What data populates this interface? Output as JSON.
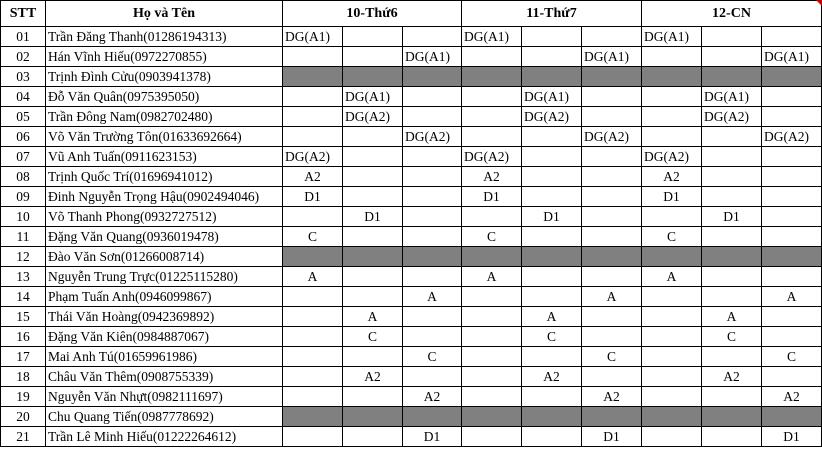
{
  "header": {
    "stt": "STT",
    "name": "Họ và Tên",
    "days": [
      "10-Thứ6",
      "11-Thứ7",
      "12-CN"
    ]
  },
  "rows": [
    {
      "stt": "01",
      "name": "Trần Đăng Thanh(01286194313)",
      "gray": false,
      "cells": [
        "DG(A1)",
        "",
        "",
        "DG(A1)",
        "",
        "",
        "DG(A1)",
        "",
        ""
      ]
    },
    {
      "stt": "02",
      "name": "Hán Vĩnh Hiếu(0972270855)",
      "gray": false,
      "cells": [
        "",
        "",
        "DG(A1)",
        "",
        "",
        "DG(A1)",
        "",
        "",
        "DG(A1)"
      ]
    },
    {
      "stt": "03",
      "name": "Trịnh Đình Cửu(0903941378)",
      "gray": true,
      "cells": [
        "",
        "",
        "",
        "",
        "",
        "",
        "",
        "",
        ""
      ]
    },
    {
      "stt": "04",
      "name": "Đỗ Văn Quân(0975395050)",
      "gray": false,
      "cells": [
        "",
        "DG(A1)",
        "",
        "",
        "DG(A1)",
        "",
        "",
        "DG(A1)",
        ""
      ]
    },
    {
      "stt": "05",
      "name": "Trần Đông Nam(0982702480)",
      "gray": false,
      "cells": [
        "",
        "DG(A2)",
        "",
        "",
        "DG(A2)",
        "",
        "",
        "DG(A2)",
        ""
      ]
    },
    {
      "stt": "06",
      "name": "Võ Văn Trường Tôn(01633692664)",
      "gray": false,
      "cells": [
        "",
        "",
        "DG(A2)",
        "",
        "",
        "DG(A2)",
        "",
        "",
        "DG(A2)"
      ]
    },
    {
      "stt": "07",
      "name": "Vũ Anh Tuấn(0911623153)",
      "gray": false,
      "cells": [
        "DG(A2)",
        "",
        "",
        "DG(A2)",
        "",
        "",
        "DG(A2)",
        "",
        ""
      ]
    },
    {
      "stt": "08",
      "name": "Trịnh Quốc Trí(01696941012)",
      "gray": false,
      "cells": [
        "A2",
        "",
        "",
        "A2",
        "",
        "",
        "A2",
        "",
        ""
      ]
    },
    {
      "stt": "09",
      "name": "Đinh Nguyễn Trọng Hậu(0902494046)",
      "gray": false,
      "cells": [
        "D1",
        "",
        "",
        "D1",
        "",
        "",
        "D1",
        "",
        ""
      ]
    },
    {
      "stt": "10",
      "name": "Võ Thanh Phong(0932727512)",
      "gray": false,
      "cells": [
        "",
        "D1",
        "",
        "",
        "D1",
        "",
        "",
        "D1",
        ""
      ]
    },
    {
      "stt": "11",
      "name": "Đặng Văn Quang(0936019478)",
      "gray": false,
      "cells": [
        "C",
        "",
        "",
        "C",
        "",
        "",
        "C",
        "",
        ""
      ]
    },
    {
      "stt": "12",
      "name": "Đào Văn Sơn(01266008714)",
      "gray": true,
      "cells": [
        "",
        "",
        "",
        "",
        "",
        "",
        "",
        "",
        ""
      ]
    },
    {
      "stt": "13",
      "name": "Nguyễn Trung Trực(01225115280)",
      "gray": false,
      "cells": [
        "A",
        "",
        "",
        "A",
        "",
        "",
        "A",
        "",
        ""
      ]
    },
    {
      "stt": "14",
      "name": "Phạm Tuấn Anh(0946099867)",
      "gray": false,
      "cells": [
        "",
        "",
        "A",
        "",
        "",
        "A",
        "",
        "",
        "A"
      ]
    },
    {
      "stt": "15",
      "name": "Thái Văn Hoàng(0942369892)",
      "gray": false,
      "cells": [
        "",
        "A",
        "",
        "",
        "A",
        "",
        "",
        "A",
        ""
      ]
    },
    {
      "stt": "16",
      "name": "Đặng Văn Kiên(0984887067)",
      "gray": false,
      "cells": [
        "",
        "C",
        "",
        "",
        "C",
        "",
        "",
        "C",
        ""
      ]
    },
    {
      "stt": "17",
      "name": " Mai Anh Tú(01659961986)",
      "gray": false,
      "cells": [
        "",
        "",
        "C",
        "",
        "",
        "C",
        "",
        "",
        "C"
      ]
    },
    {
      "stt": "18",
      "name": "Châu Văn Thêm(0908755339)",
      "gray": false,
      "cells": [
        "",
        "A2",
        "",
        "",
        "A2",
        "",
        "",
        "A2",
        ""
      ]
    },
    {
      "stt": "19",
      "name": "Nguyễn Văn Nhựt(0982111697)",
      "gray": false,
      "cells": [
        "",
        "",
        "A2",
        "",
        "",
        "A2",
        "",
        "",
        "A2"
      ]
    },
    {
      "stt": "20",
      "name": "Chu Quang Tiến(0987778692)",
      "gray": true,
      "cells": [
        "",
        "",
        "",
        "",
        "",
        "",
        "",
        "",
        ""
      ]
    },
    {
      "stt": "21",
      "name": "Trần Lê Minh Hiếu(01222264612)",
      "gray": false,
      "cells": [
        "",
        "",
        "D1",
        "",
        "",
        "D1",
        "",
        "",
        "D1"
      ]
    }
  ],
  "colors": {
    "gray_fill": "#808080",
    "grid": "#000000",
    "corner_mark": "#cc0000"
  }
}
